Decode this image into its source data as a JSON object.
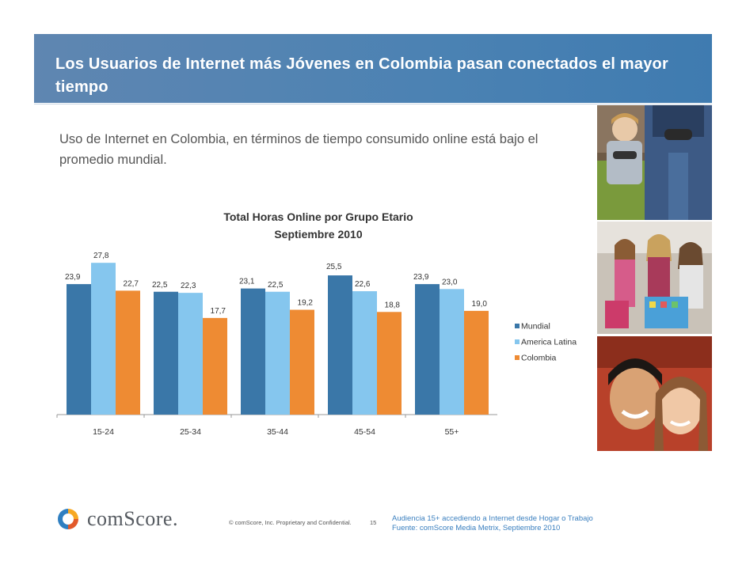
{
  "slide": {
    "title": "Los Usuarios de Internet más Jóvenes en Colombia pasan conectados el mayor tiempo",
    "subtitle": "Uso de Internet en Colombia, en términos de tiempo consumido online está bajo el promedio mundial."
  },
  "chart_data": {
    "type": "bar",
    "title": "Total Horas Online por Grupo Etario",
    "subtitle": "Septiembre 2010",
    "categories": [
      "15-24",
      "25-34",
      "35-44",
      "45-54",
      "55+"
    ],
    "series": [
      {
        "name": "Mundial",
        "color": "#3a77a8",
        "values": [
          23.9,
          22.5,
          23.1,
          25.5,
          23.9
        ]
      },
      {
        "name": "America Latina",
        "color": "#85c6ee",
        "values": [
          27.8,
          22.3,
          22.5,
          22.6,
          23.0
        ]
      },
      {
        "name": "Colombia",
        "color": "#ee8b33",
        "values": [
          22.7,
          17.7,
          19.2,
          18.8,
          19.0
        ]
      }
    ],
    "data_labels": [
      [
        "23,9",
        "27,8",
        "22,7"
      ],
      [
        "22,5",
        "22,3",
        "17,7"
      ],
      [
        "23,1",
        "22,5",
        "19,2"
      ],
      [
        "25,5",
        "22,6",
        "18,8"
      ],
      [
        "23,9",
        "23,0",
        "19,0"
      ]
    ],
    "ylim": [
      0,
      30
    ],
    "legend_position": "right",
    "grid": false
  },
  "footer": {
    "logo_text": "comScore.",
    "copyright": "© comScore, Inc.  Proprietary and Confidential.",
    "page_number": "15",
    "note_line1": "Audiencia 15+ accediendo a Internet desde Hogar o Trabajo",
    "note_line2": "Fuente:  comScore Media Metrix, Septiembre 2010"
  },
  "photos": [
    "gamer-photo",
    "shoppers-photo",
    "couple-photo"
  ]
}
